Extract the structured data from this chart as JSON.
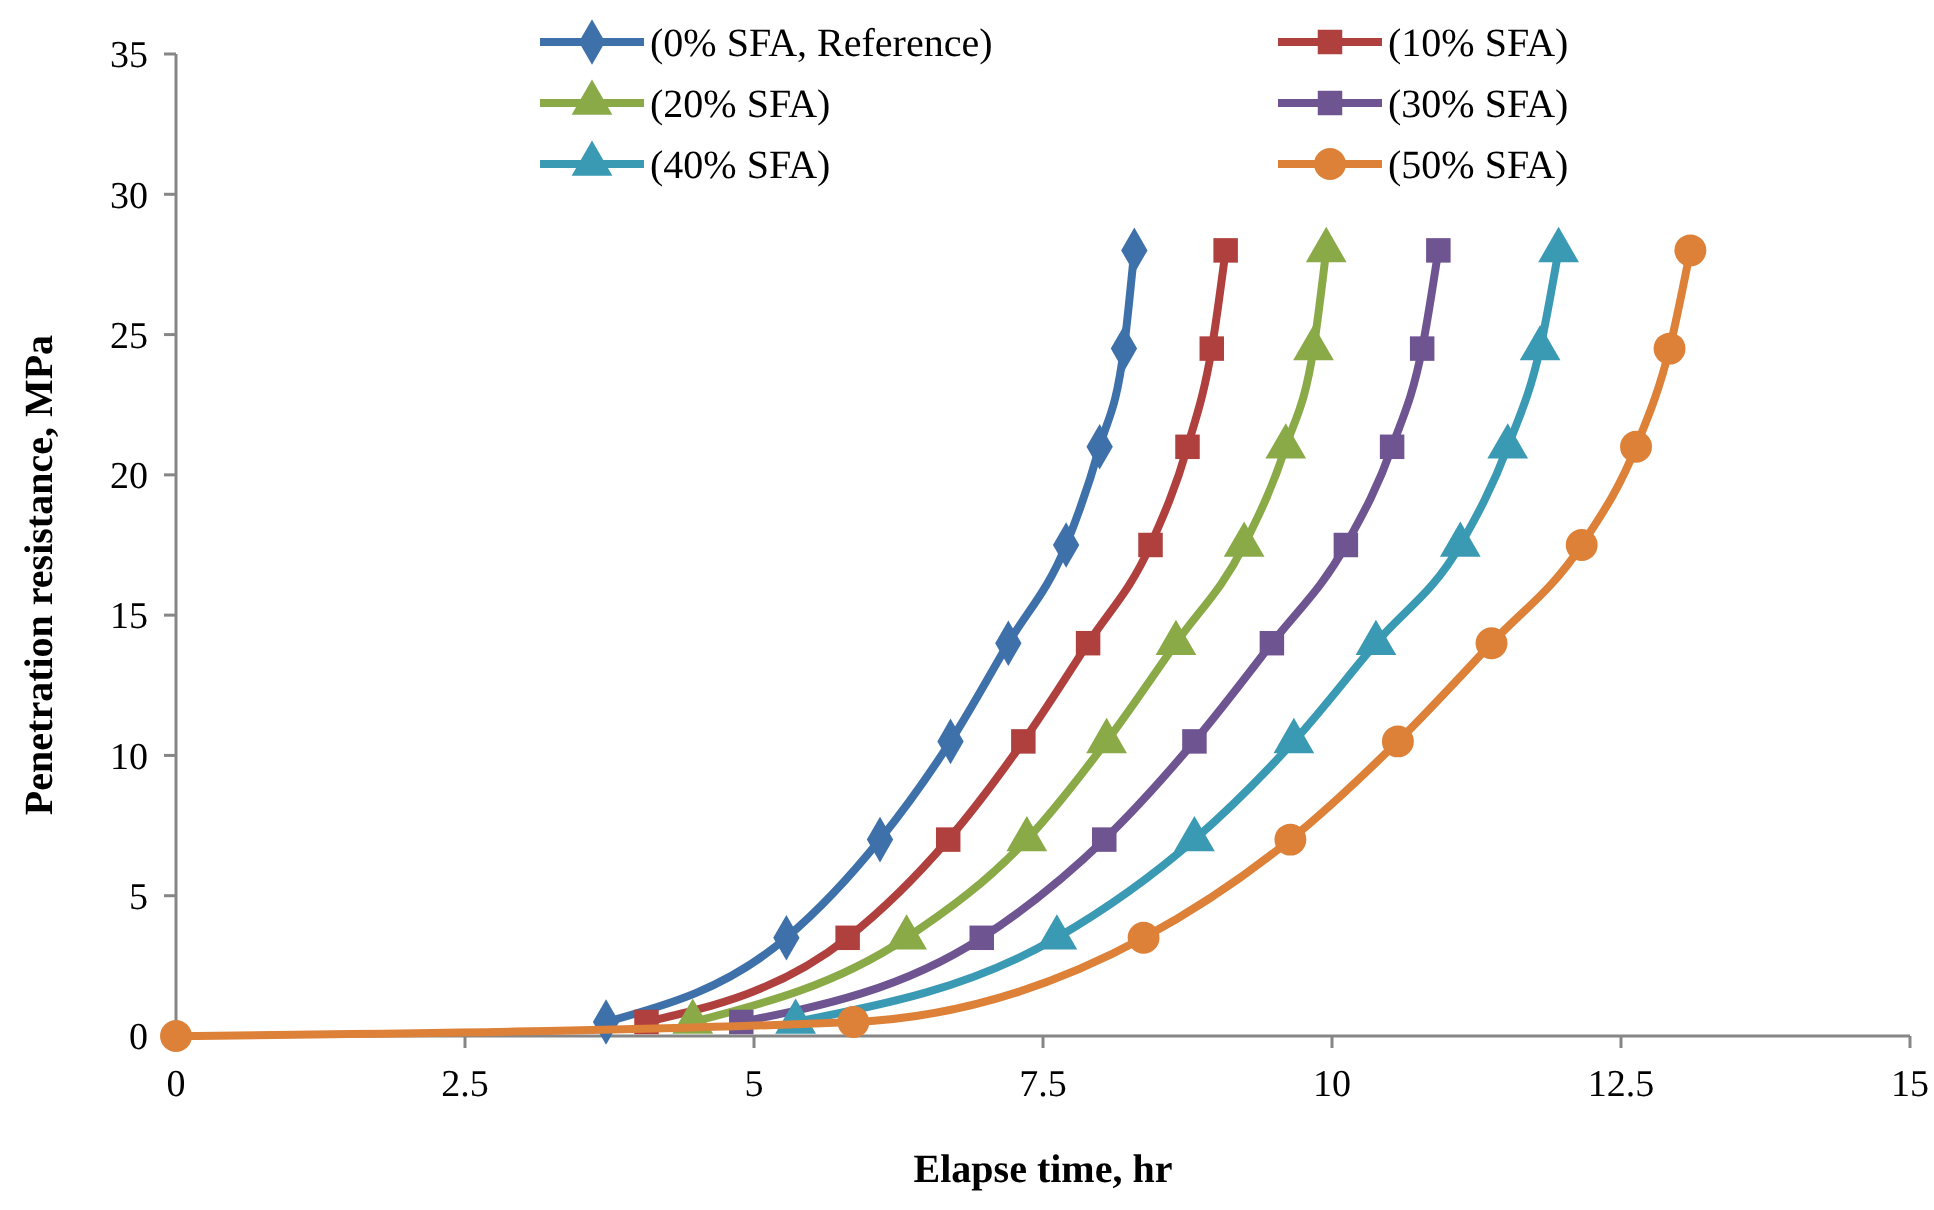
{
  "chart_data": {
    "type": "line",
    "xlabel": "Elapse time, hr",
    "ylabel": "Penetration resistance, MPa",
    "xlim": [
      0,
      15
    ],
    "xticks": [
      0,
      2.5,
      5,
      7.5,
      10,
      12.5,
      15
    ],
    "ylim": [
      0,
      35
    ],
    "yticks": [
      0,
      5,
      10,
      15,
      20,
      25,
      30,
      35
    ],
    "grid": false,
    "legend": "top",
    "line_style": "solid",
    "series": [
      {
        "name": "(0% SFA, Reference)",
        "color": "#3e70aa",
        "marker": "diamond",
        "x": [
          3.72,
          5.28,
          6.09,
          6.7,
          7.2,
          7.7,
          7.99,
          8.2,
          8.29
        ],
        "values": [
          0.5,
          3.5,
          7,
          10.5,
          14,
          17.5,
          21,
          24.5,
          28
        ]
      },
      {
        "name": "(10% SFA)",
        "color": "#b0403d",
        "marker": "square",
        "x": [
          4.07,
          5.81,
          6.68,
          7.33,
          7.89,
          8.43,
          8.75,
          8.96,
          9.08
        ],
        "values": [
          0.5,
          3.5,
          7,
          10.5,
          14,
          17.5,
          21,
          24.5,
          28
        ]
      },
      {
        "name": "(20% SFA)",
        "color": "#8aaa48",
        "marker": "triangle",
        "x": [
          4.47,
          6.32,
          7.36,
          8.05,
          8.65,
          9.24,
          9.6,
          9.84,
          9.95
        ],
        "values": [
          0.5,
          3.5,
          7,
          10.5,
          14,
          17.5,
          21,
          24.5,
          28
        ]
      },
      {
        "name": "(30% SFA)",
        "color": "#6f5492",
        "marker": "square",
        "x": [
          4.89,
          6.97,
          8.03,
          8.81,
          9.48,
          10.12,
          10.52,
          10.78,
          10.92
        ],
        "values": [
          0.5,
          3.5,
          7,
          10.5,
          14,
          17.5,
          21,
          24.5,
          28
        ]
      },
      {
        "name": "(40% SFA)",
        "color": "#3a9ab3",
        "marker": "triangle",
        "x": [
          5.36,
          7.62,
          8.81,
          9.67,
          10.38,
          11.11,
          11.52,
          11.8,
          11.96
        ],
        "values": [
          0.5,
          3.5,
          7,
          10.5,
          14,
          17.5,
          21,
          24.5,
          28
        ]
      },
      {
        "name": "(50% SFA)",
        "color": "#dd8138",
        "marker": "circle",
        "x": [
          0,
          5.86,
          8.37,
          9.64,
          10.57,
          11.38,
          12.16,
          12.63,
          12.92,
          13.1
        ],
        "values": [
          0,
          0.5,
          3.5,
          7,
          10.5,
          14,
          17.5,
          21,
          24.5,
          28
        ]
      }
    ]
  }
}
